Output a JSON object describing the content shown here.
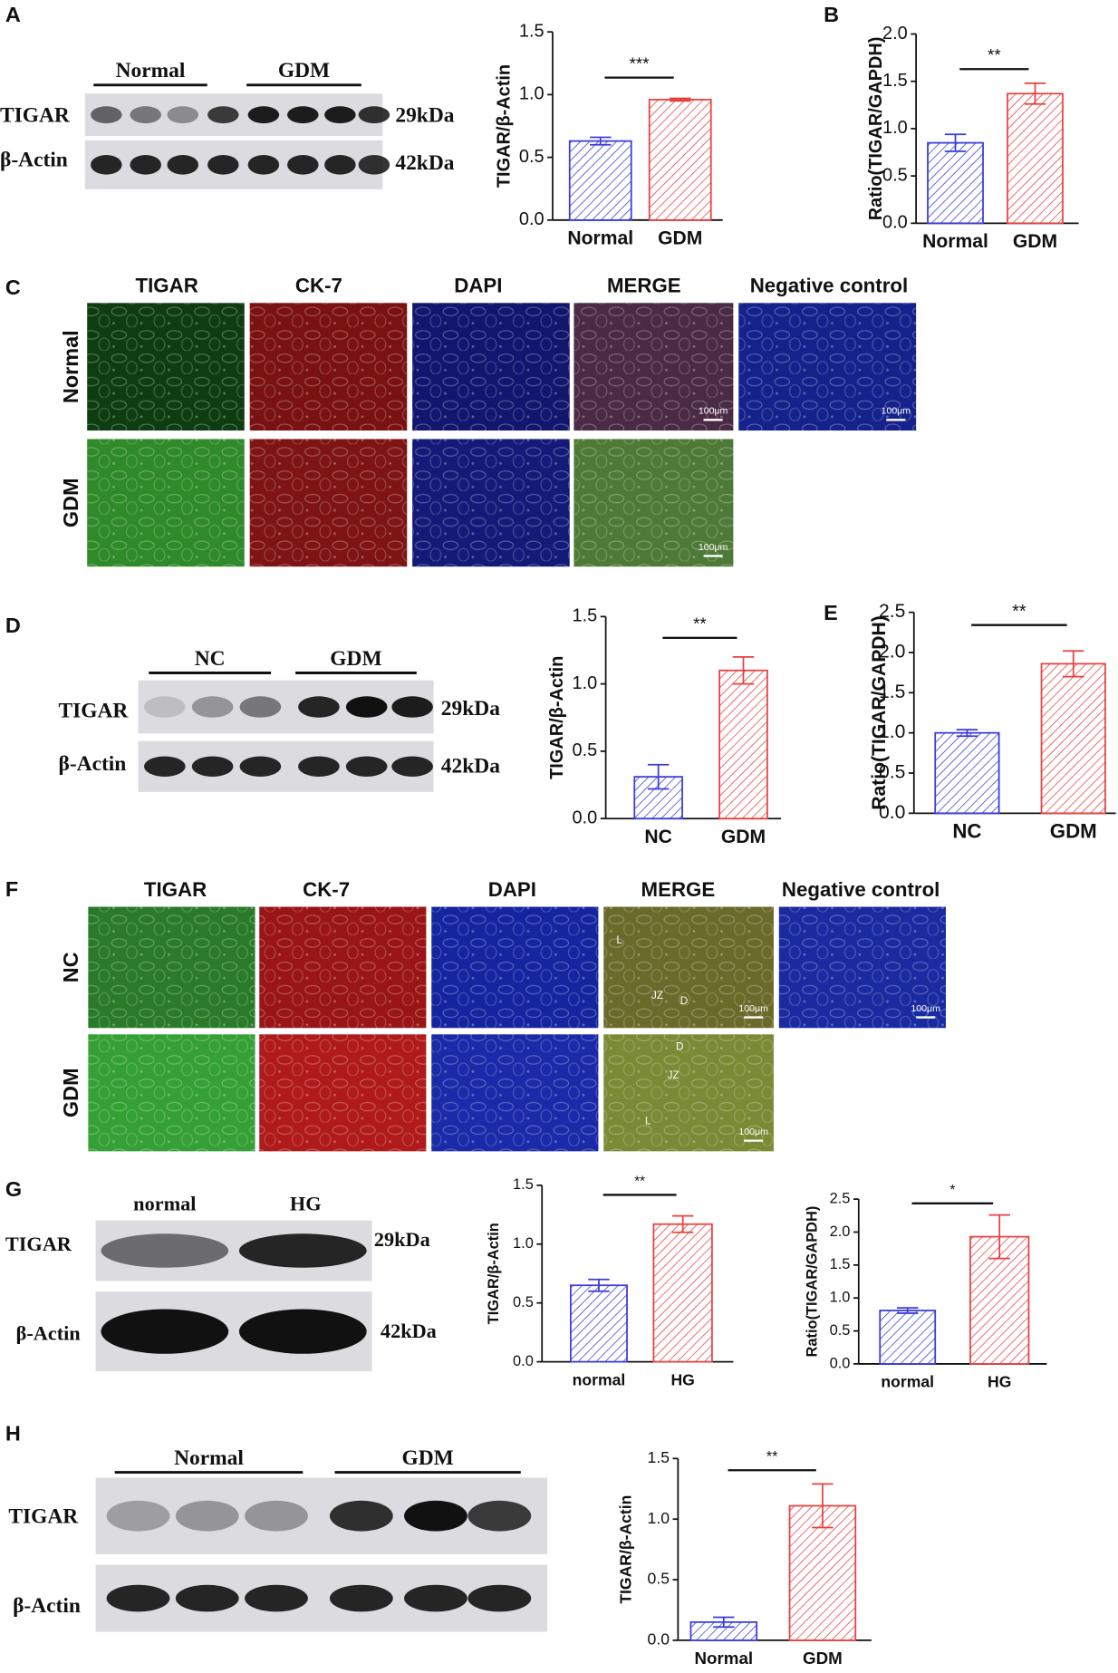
{
  "chart_data": [
    {
      "type": "bar",
      "y_label": "TIGAR/β-Actin",
      "categories": [
        "Normal",
        "GDM"
      ],
      "values": [
        0.63,
        0.96
      ],
      "errors": [
        0.03,
        0.01
      ],
      "colors": [
        "#3b3bdb",
        "#e8413f"
      ],
      "ylim": [
        0,
        1.5
      ],
      "yticks": [
        {
          "value": 0,
          "label": "0.0"
        },
        0.5,
        {
          "value": 1,
          "label": "1.0"
        },
        1.5
      ],
      "annotation": "***"
    },
    {
      "type": "bar",
      "y_label": "Ratio(TIGAR/GAPDH)",
      "categories": [
        "Normal",
        "GDM"
      ],
      "values": [
        0.85,
        1.37
      ],
      "errors": [
        0.09,
        0.11
      ],
      "colors": [
        "#3b3bdb",
        "#e8413f"
      ],
      "ylim": [
        0,
        2
      ],
      "yticks": [
        {
          "value": 0,
          "label": "0.0"
        },
        0.5,
        {
          "value": 1,
          "label": "1.0"
        },
        1.5,
        {
          "value": 2,
          "label": "2.0"
        }
      ],
      "annotation": "**"
    },
    {
      "type": "bar",
      "y_label": "TIGAR/β-Actin",
      "categories": [
        "NC",
        "GDM"
      ],
      "values": [
        0.31,
        1.1
      ],
      "errors": [
        0.09,
        0.1
      ],
      "colors": [
        "#3b3bdb",
        "#e8413f"
      ],
      "ylim": [
        0,
        1.5
      ],
      "yticks": [
        {
          "value": 0,
          "label": "0.0"
        },
        0.5,
        {
          "value": 1,
          "label": "1.0"
        },
        1.5
      ],
      "annotation": "**"
    },
    {
      "type": "bar",
      "y_label": "Ratio(TIGAR/GAPDH)",
      "categories": [
        "NC",
        "GDM"
      ],
      "values": [
        1.0,
        1.86
      ],
      "errors": [
        0.04,
        0.16
      ],
      "colors": [
        "#3b3bdb",
        "#e8413f"
      ],
      "ylim": [
        0,
        2.5
      ],
      "yticks": [
        {
          "value": 0,
          "label": "0.0"
        },
        0.5,
        {
          "value": 1,
          "label": "1.0"
        },
        1.5,
        {
          "value": 2,
          "label": "2.0"
        },
        2.5
      ],
      "annotation": "**"
    },
    {
      "type": "bar",
      "y_label": "TIGAR/β-Actin",
      "categories": [
        "normal",
        "HG"
      ],
      "values": [
        0.65,
        1.17
      ],
      "errors": [
        0.05,
        0.07
      ],
      "colors": [
        "#3b3bdb",
        "#e8413f"
      ],
      "ylim": [
        0,
        1.5
      ],
      "yticks": [
        {
          "value": 0,
          "label": "0.0"
        },
        0.5,
        {
          "value": 1,
          "label": "1.0"
        },
        1.5
      ],
      "annotation": "**"
    },
    {
      "type": "bar",
      "y_label": "Ratio(TIGAR/GAPDH)",
      "categories": [
        "normal",
        "HG"
      ],
      "values": [
        0.81,
        1.93
      ],
      "errors": [
        0.04,
        0.33
      ],
      "colors": [
        "#3b3bdb",
        "#e8413f"
      ],
      "ylim": [
        0,
        2.5
      ],
      "yticks": [
        {
          "value": 0,
          "label": "0.0"
        },
        0.5,
        {
          "value": 1,
          "label": "1.0"
        },
        1.5,
        {
          "value": 2,
          "label": "2.0"
        },
        2.5
      ],
      "annotation": "*"
    },
    {
      "type": "bar",
      "y_label": "TIGAR/β-Actin",
      "categories": [
        "Normal",
        "GDM"
      ],
      "values": [
        0.15,
        1.11
      ],
      "errors": [
        0.04,
        0.18
      ],
      "colors": [
        "#3b3bdb",
        "#e8413f"
      ],
      "ylim": [
        0,
        1.5
      ],
      "yticks": [
        {
          "value": 0,
          "label": "0.0"
        },
        0.5,
        {
          "value": 1,
          "label": "1.0"
        },
        1.5
      ],
      "annotation": "**"
    }
  ],
  "panel_labels": [
    "A",
    "B",
    "C",
    "D",
    "E",
    "F",
    "G",
    "H"
  ],
  "blots": [
    {
      "groups": [
        "Normal",
        "GDM"
      ],
      "rows": [
        "TIGAR",
        "β-Actin"
      ],
      "sizes": [
        "29kDa",
        "42kDa"
      ]
    },
    {
      "groups": [
        "NC",
        "GDM"
      ],
      "rows": [
        "TIGAR",
        "β-Actin"
      ],
      "sizes": [
        "29kDa",
        "42kDa"
      ]
    },
    {
      "groups": [
        "normal",
        "HG"
      ],
      "rows": [
        "TIGAR",
        "β-Actin"
      ],
      "sizes": [
        "29kDa",
        "42kDa"
      ]
    },
    {
      "groups": [
        "Normal",
        "GDM"
      ],
      "rows": [
        "TIGAR",
        "β-Actin"
      ]
    }
  ],
  "micrographs": [
    {
      "columns": [
        "TIGAR",
        "CK-7",
        "DAPI",
        "MERGE",
        "Negative control"
      ],
      "rows": [
        "Normal",
        "GDM"
      ],
      "scale_bar": "100μm"
    },
    {
      "columns": [
        "TIGAR",
        "CK-7",
        "DAPI",
        "MERGE",
        "Negative control"
      ],
      "rows": [
        "NC",
        "GDM"
      ],
      "scale_bar": "100μm",
      "region_labels": [
        [
          "L",
          "JZ",
          "D"
        ],
        [
          "D",
          "JZ",
          "L"
        ]
      ]
    }
  ]
}
